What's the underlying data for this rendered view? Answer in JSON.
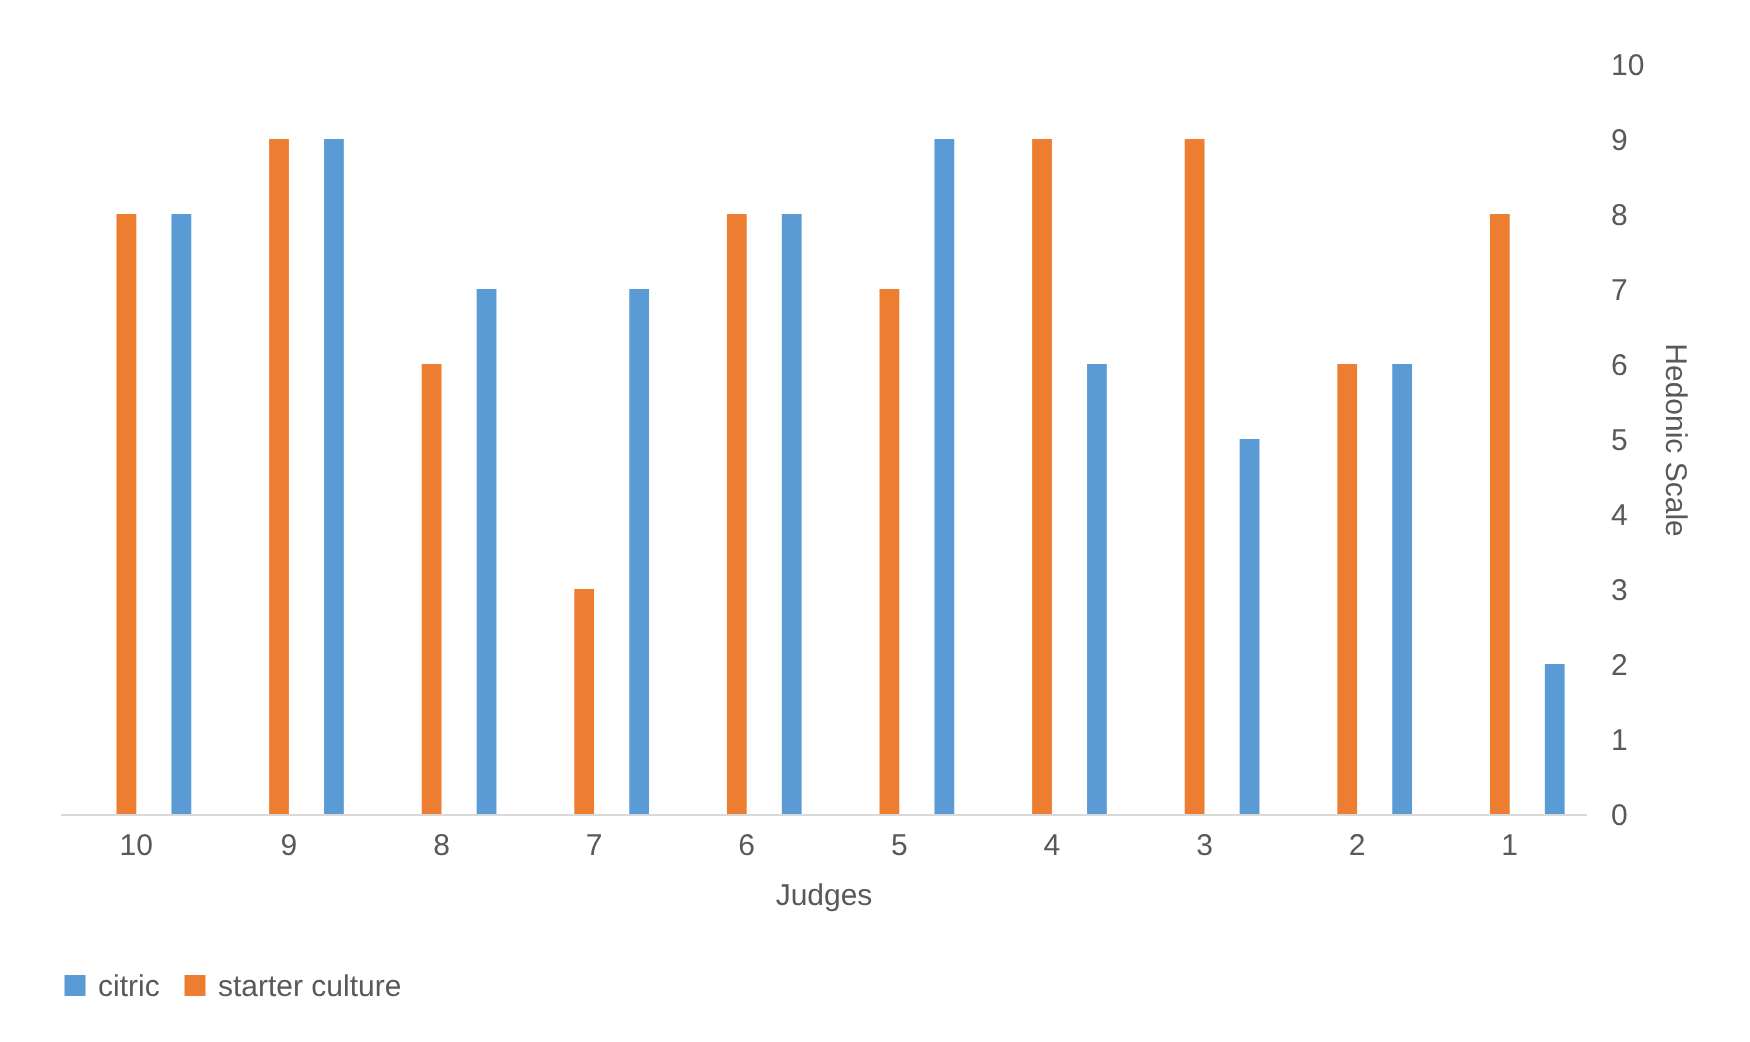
{
  "chart_data": {
    "type": "bar",
    "xlabel": "Judges",
    "ylabel": "Hedonic Scale",
    "categories": [
      "10",
      "9",
      "8",
      "7",
      "6",
      "5",
      "4",
      "3",
      "2",
      "1"
    ],
    "series": [
      {
        "name": "citric",
        "color": "#5b9bd5",
        "values": [
          8,
          9,
          7,
          7,
          8,
          9,
          6,
          5,
          6,
          2
        ]
      },
      {
        "name": "starter culture",
        "color": "#ed7d31",
        "values": [
          8,
          9,
          6,
          3,
          8,
          7,
          9,
          9,
          6,
          8
        ]
      }
    ],
    "ylim": [
      0,
      10
    ],
    "yticks": [
      0,
      1,
      2,
      3,
      4,
      5,
      6,
      7,
      8,
      9,
      10
    ],
    "grid": false,
    "legend": "bottom"
  }
}
